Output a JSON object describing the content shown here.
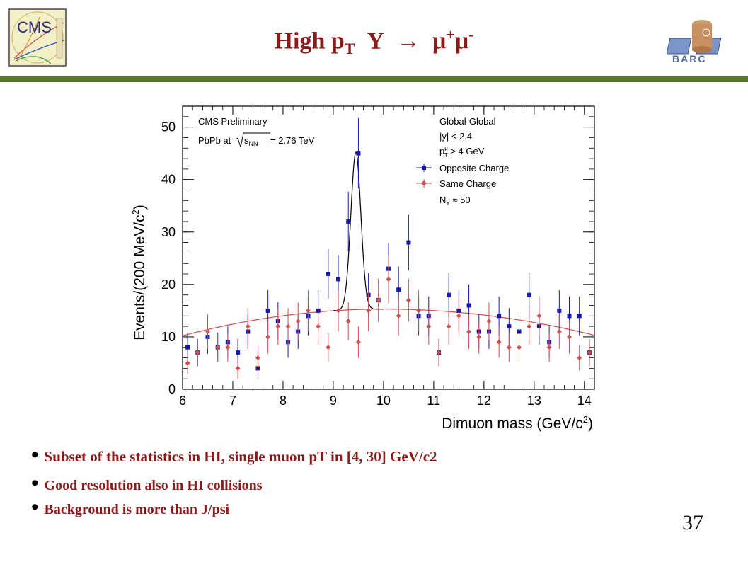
{
  "slide": {
    "title_main": "High p",
    "title_sub": "T",
    "title_upsilon": "Υ",
    "title_arrow": "→",
    "title_mu_plus": "μ",
    "title_plus": "+",
    "title_mu_minus": "μ",
    "title_minus": "-",
    "page_number": "37",
    "colors": {
      "title": "#8B1A1A",
      "rule": "#5a7a2a"
    }
  },
  "logos": {
    "left_text": "CMS",
    "left_icon": "cms-logo",
    "right_text": "BARC",
    "right_icon": "barc-logo"
  },
  "bullets": [
    "Subset of the statistics in HI, single muon pT in [4, 30] GeV/c2",
    "Good resolution also in HI collisions",
    "Background is more than J/psi"
  ],
  "chart_data": {
    "type": "scatter",
    "xlabel": "Dimuon mass (GeV/c",
    "xlabel_sup": "2",
    "xlabel_end": ")",
    "ylabel": "Events/(200 MeV/c",
    "ylabel_sup": "2",
    "ylabel_end": ")",
    "xlim": [
      6,
      14.2
    ],
    "ylim": [
      0,
      54
    ],
    "x_ticks": [
      6,
      7,
      8,
      9,
      10,
      11,
      12,
      13,
      14
    ],
    "y_ticks": [
      0,
      10,
      20,
      30,
      40,
      50
    ],
    "annotations_left": {
      "line1": "CMS Preliminary",
      "line2_pre": "PbPb at",
      "line2_s": "s",
      "line2_sub": "NN",
      "line2_post": " = 2.76 TeV"
    },
    "annotations_right": {
      "line1": "Global-Global",
      "line2": "|y| < 2.4",
      "line3_p": "p",
      "line3_sup": "μ",
      "line3_sub": "T",
      "line3_post": " > 4 GeV",
      "n_label": "N",
      "n_sub": "Υ",
      "n_post": " ≈ 50"
    },
    "legend_position": "top-right",
    "series": [
      {
        "name": "Opposite Charge",
        "color": "#1a1aa8",
        "marker": "square",
        "x": [
          6.1,
          6.3,
          6.5,
          6.7,
          6.9,
          7.1,
          7.3,
          7.5,
          7.7,
          7.9,
          8.1,
          8.3,
          8.5,
          8.7,
          8.9,
          9.1,
          9.3,
          9.5,
          9.7,
          9.9,
          10.1,
          10.3,
          10.5,
          10.7,
          10.9,
          11.1,
          11.3,
          11.5,
          11.7,
          11.9,
          12.1,
          12.3,
          12.5,
          12.7,
          12.9,
          13.1,
          13.3,
          13.5,
          13.7,
          13.9,
          14.1
        ],
        "y": [
          8,
          7,
          10,
          8,
          9,
          7,
          11,
          4,
          15,
          13,
          9,
          11,
          14,
          15,
          22,
          21,
          32,
          45,
          18,
          17,
          23,
          19,
          28,
          14,
          14,
          7,
          18,
          15,
          16,
          11,
          11,
          14,
          12,
          11,
          18,
          12,
          9,
          15,
          14,
          14,
          7
        ],
        "err": [
          2.8,
          2.6,
          3.2,
          2.8,
          3.0,
          2.6,
          3.3,
          2.0,
          3.9,
          3.6,
          3.0,
          3.3,
          3.7,
          3.9,
          4.7,
          4.6,
          5.7,
          6.7,
          4.2,
          4.1,
          4.8,
          4.4,
          5.3,
          3.7,
          3.7,
          2.6,
          4.2,
          3.9,
          4.0,
          3.3,
          3.3,
          3.7,
          3.5,
          3.3,
          4.2,
          3.5,
          3.0,
          3.9,
          3.7,
          3.7,
          2.6
        ]
      },
      {
        "name": "Same Charge",
        "color": "#d05050",
        "marker": "diamond",
        "x": [
          6.1,
          6.3,
          6.5,
          6.7,
          6.9,
          7.1,
          7.3,
          7.5,
          7.7,
          7.9,
          8.1,
          8.3,
          8.5,
          8.7,
          8.9,
          9.1,
          9.3,
          9.5,
          9.7,
          9.9,
          10.1,
          10.3,
          10.5,
          10.7,
          10.9,
          11.1,
          11.3,
          11.5,
          11.7,
          11.9,
          12.1,
          12.3,
          12.5,
          12.7,
          12.9,
          13.1,
          13.3,
          13.5,
          13.7,
          13.9,
          14.1
        ],
        "y": [
          5,
          7,
          11,
          8,
          8,
          4,
          12,
          6,
          10,
          12,
          12,
          13,
          15,
          12,
          8,
          15,
          13,
          9,
          15,
          17,
          21,
          14,
          17,
          15,
          12,
          7,
          12,
          14,
          11,
          10,
          13,
          9,
          8,
          8,
          12,
          14,
          8,
          11,
          10,
          6,
          7
        ],
        "err": [
          2.2,
          2.6,
          3.3,
          2.8,
          2.8,
          2.0,
          3.5,
          2.4,
          3.2,
          3.5,
          3.5,
          3.6,
          3.9,
          3.5,
          2.8,
          3.9,
          3.6,
          3.0,
          3.9,
          4.1,
          4.6,
          3.7,
          4.1,
          3.9,
          3.5,
          2.6,
          3.5,
          3.7,
          3.3,
          3.2,
          3.6,
          3.0,
          2.8,
          2.8,
          3.5,
          3.7,
          2.8,
          3.3,
          3.2,
          2.4,
          2.6
        ]
      }
    ],
    "fits": [
      {
        "kind": "signal-plus-background",
        "color": "#000000",
        "mean": 9.45,
        "sigma": 0.1,
        "amplitude": 30,
        "x_range": [
          9.0,
          10.0
        ]
      },
      {
        "kind": "background",
        "color": "#d05050",
        "x_range": [
          6.0,
          14.2
        ],
        "y_at_start": 10.2,
        "y_peak": 15.3,
        "x_peak": 10.0,
        "y_at_end": 10.3
      }
    ]
  }
}
